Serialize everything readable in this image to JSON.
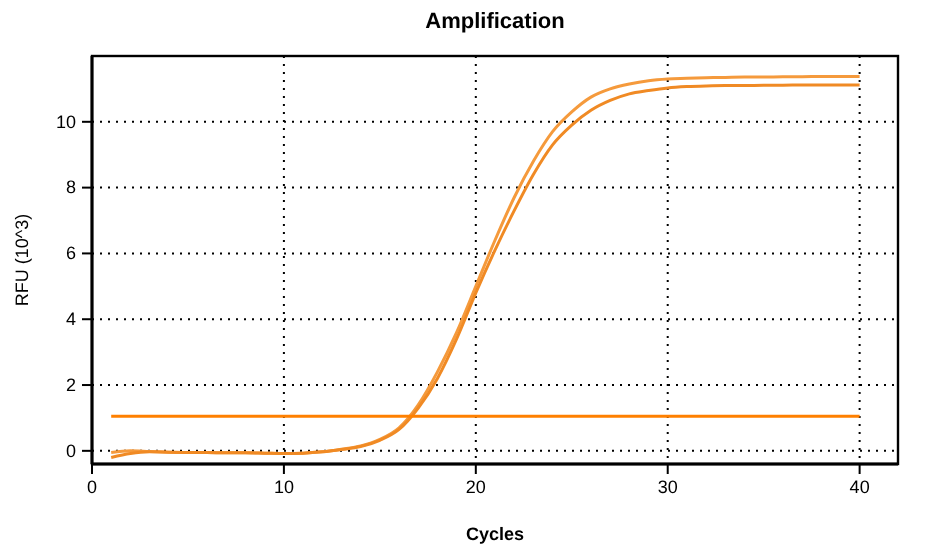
{
  "chart_data": {
    "type": "line",
    "title": "Amplification",
    "xlabel": "Cycles",
    "ylabel": "RFU (10^3)",
    "x": [
      1,
      2,
      3,
      4,
      5,
      6,
      7,
      8,
      9,
      10,
      11,
      12,
      13,
      14,
      15,
      16,
      17,
      18,
      19,
      20,
      21,
      22,
      23,
      24,
      25,
      26,
      27,
      28,
      29,
      30,
      31,
      32,
      33,
      34,
      35,
      36,
      37,
      38,
      39,
      40
    ],
    "series": [
      {
        "color": "#f59a3c",
        "values": [
          -0.05,
          0.0,
          -0.02,
          -0.04,
          -0.05,
          -0.05,
          -0.06,
          -0.06,
          -0.07,
          -0.08,
          -0.07,
          -0.03,
          0.05,
          0.15,
          0.35,
          0.7,
          1.4,
          2.4,
          3.6,
          5.0,
          6.4,
          7.7,
          8.8,
          9.7,
          10.3,
          10.75,
          11.0,
          11.15,
          11.25,
          11.3,
          11.32,
          11.34,
          11.35,
          11.36,
          11.36,
          11.37,
          11.37,
          11.38,
          11.38,
          11.38
        ]
      },
      {
        "color": "#f08a24",
        "values": [
          -0.2,
          -0.08,
          -0.03,
          -0.04,
          -0.05,
          -0.05,
          -0.06,
          -0.06,
          -0.07,
          -0.08,
          -0.07,
          -0.03,
          0.04,
          0.13,
          0.32,
          0.65,
          1.3,
          2.2,
          3.4,
          4.8,
          6.1,
          7.3,
          8.4,
          9.3,
          9.9,
          10.35,
          10.65,
          10.85,
          10.95,
          11.03,
          11.07,
          11.09,
          11.1,
          11.1,
          11.11,
          11.11,
          11.12,
          11.12,
          11.12,
          11.12
        ]
      },
      {
        "color": "#ff8000",
        "x": [
          1,
          40
        ],
        "values": [
          1.05,
          1.05
        ]
      }
    ],
    "xlim": [
      0,
      42
    ],
    "xticks": [
      0,
      10,
      20,
      30,
      40
    ],
    "ylim": [
      -0.4,
      12
    ],
    "yticks": [
      0,
      2,
      4,
      6,
      8,
      10
    ],
    "grid": true
  }
}
